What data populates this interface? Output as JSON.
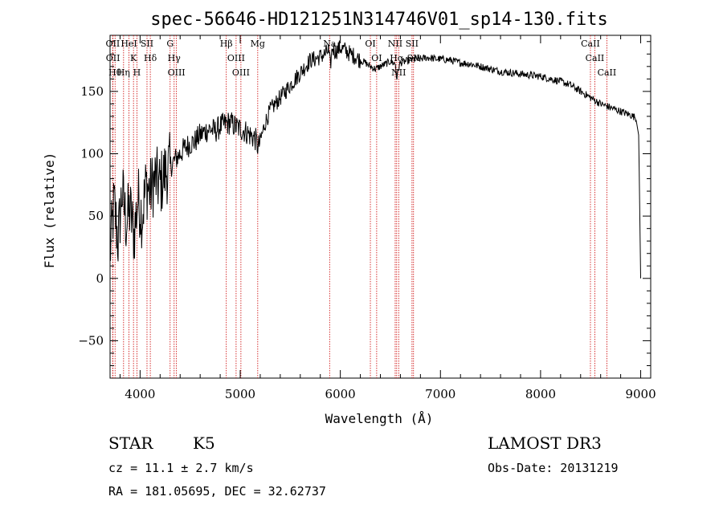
{
  "chart_data": {
    "type": "line",
    "title": "spec-56646-HD121251N314746V01_sp14-130.fits",
    "xlabel": "Wavelength (Å)",
    "ylabel": "Flux (relative)",
    "xlim": [
      3700,
      9100
    ],
    "ylim": [
      -80,
      195
    ],
    "xticks": [
      4000,
      5000,
      6000,
      7000,
      8000,
      9000
    ],
    "yticks": [
      -50,
      0,
      50,
      100,
      150
    ],
    "grid": false,
    "series": [
      {
        "name": "flux",
        "x": [
          3700,
          3740,
          3780,
          3820,
          3860,
          3900,
          3940,
          3980,
          4020,
          4060,
          4100,
          4150,
          4200,
          4250,
          4300,
          4350,
          4400,
          4450,
          4500,
          4550,
          4600,
          4650,
          4700,
          4750,
          4800,
          4850,
          4900,
          4950,
          5000,
          5050,
          5100,
          5150,
          5180,
          5200,
          5250,
          5300,
          5350,
          5400,
          5450,
          5500,
          5550,
          5600,
          5650,
          5700,
          5750,
          5800,
          5850,
          5880,
          5900,
          5920,
          5950,
          6000,
          6050,
          6100,
          6150,
          6200,
          6250,
          6300,
          6350,
          6400,
          6450,
          6500,
          6550,
          6563,
          6580,
          6600,
          6650,
          6700,
          6750,
          6800,
          6850,
          6900,
          6950,
          7000,
          7100,
          7200,
          7300,
          7400,
          7500,
          7600,
          7700,
          7800,
          7900,
          8000,
          8100,
          8200,
          8300,
          8400,
          8500,
          8600,
          8700,
          8800,
          8900,
          8950,
          8980,
          9000
        ],
        "y": [
          20,
          60,
          30,
          70,
          45,
          55,
          35,
          65,
          50,
          75,
          70,
          80,
          75,
          85,
          90,
          95,
          100,
          105,
          108,
          110,
          115,
          118,
          120,
          118,
          122,
          124,
          125,
          122,
          120,
          118,
          115,
          112,
          105,
          110,
          125,
          135,
          140,
          145,
          150,
          155,
          160,
          165,
          170,
          175,
          176,
          178,
          180,
          183,
          170,
          185,
          182,
          185,
          183,
          180,
          178,
          175,
          173,
          170,
          168,
          170,
          172,
          174,
          172,
          160,
          168,
          173,
          174,
          175,
          176,
          176,
          177,
          177,
          176,
          176,
          175,
          173,
          172,
          170,
          168,
          166,
          165,
          164,
          163,
          162,
          160,
          158,
          155,
          150,
          145,
          140,
          137,
          134,
          131,
          129,
          115,
          0
        ]
      }
    ],
    "spectral_lines": [
      {
        "label": "Hθ",
        "x": 3750
      },
      {
        "label": "OII",
        "x": 3727
      },
      {
        "label": "OII",
        "x": 3729
      },
      {
        "label": "Hη",
        "x": 3835
      },
      {
        "label": "K",
        "x": 3934
      },
      {
        "label": "HeI",
        "x": 3889
      },
      {
        "label": "H",
        "x": 3968
      },
      {
        "label": "SII",
        "x": 4069
      },
      {
        "label": "Hδ",
        "x": 4102
      },
      {
        "label": "OIII",
        "x": 4363
      },
      {
        "label": "Hγ",
        "x": 4340
      },
      {
        "label": "G",
        "x": 4300
      },
      {
        "label": "Hβ",
        "x": 4861
      },
      {
        "label": "OIII",
        "x": 4959
      },
      {
        "label": "OIII",
        "x": 5007
      },
      {
        "label": "Mg",
        "x": 5175
      },
      {
        "label": "Na",
        "x": 5893
      },
      {
        "label": "OI",
        "x": 6300
      },
      {
        "label": "OI",
        "x": 6363
      },
      {
        "label": "Hα",
        "x": 6563
      },
      {
        "label": "NII",
        "x": 6548
      },
      {
        "label": "NII",
        "x": 6583
      },
      {
        "label": "SII",
        "x": 6716
      },
      {
        "label": "SII",
        "x": 6731
      },
      {
        "label": "CaII",
        "x": 8498
      },
      {
        "label": "CaII",
        "x": 8542
      },
      {
        "label": "CaII",
        "x": 8662
      }
    ]
  },
  "info": {
    "object_type": "STAR",
    "subclass": "K5",
    "survey": "LAMOST DR3",
    "cz": "cz = 11.1 ± 2.7 km/s",
    "obs_date": "Obs-Date: 20131219",
    "radec": "RA = 181.05695, DEC =  32.62737"
  },
  "colors": {
    "line": "#000000",
    "marker": "#cc0000",
    "axis": "#000000"
  }
}
